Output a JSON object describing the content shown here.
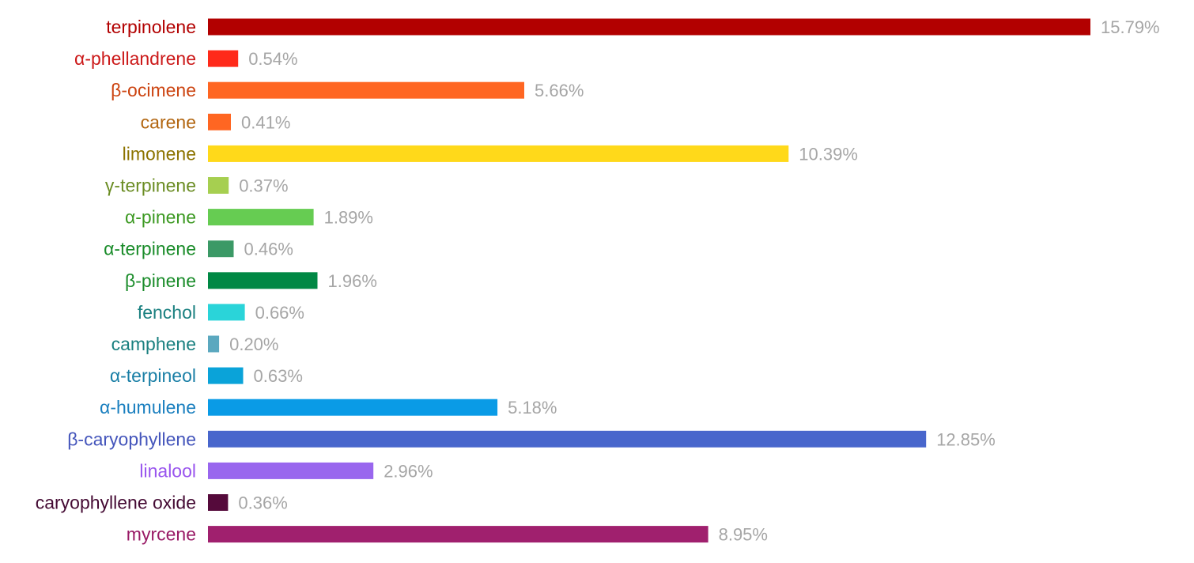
{
  "chart_data": {
    "type": "bar",
    "orientation": "horizontal",
    "categories": [
      "terpinolene",
      "α-phellandrene",
      "β-ocimene",
      "carene",
      "limonene",
      "γ-terpinene",
      "α-pinene",
      "α-terpinene",
      "β-pinene",
      "fenchol",
      "camphene",
      "α-terpineol",
      "α-humulene",
      "β-caryophyllene",
      "linalool",
      "caryophyllene oxide",
      "myrcene"
    ],
    "values": [
      15.79,
      0.54,
      5.66,
      0.41,
      10.39,
      0.37,
      1.89,
      0.46,
      1.96,
      0.66,
      0.2,
      0.63,
      5.18,
      12.85,
      2.96,
      0.36,
      8.95
    ],
    "value_labels": [
      "15.79%",
      "0.54%",
      "5.66%",
      "0.41%",
      "10.39%",
      "0.37%",
      "1.89%",
      "0.46%",
      "1.96%",
      "0.66%",
      "0.20%",
      "0.63%",
      "5.18%",
      "12.85%",
      "2.96%",
      "0.36%",
      "8.95%"
    ],
    "bar_colors": [
      "#b20000",
      "#ff2a1a",
      "#ff6622",
      "#ff6622",
      "#ffd91a",
      "#a6cf50",
      "#66cc52",
      "#3b9966",
      "#008844",
      "#2ad4d9",
      "#5ba8bf",
      "#0aa3d9",
      "#0a9be6",
      "#4866cc",
      "#9966ee",
      "#550a3b",
      "#a0206e"
    ],
    "label_colors": [
      "#b20000",
      "#cc1a1a",
      "#cc4411",
      "#b26611",
      "#8c7300",
      "#6a8c22",
      "#3c9922",
      "#1a8c2a",
      "#1a8c2a",
      "#1a8080",
      "#1a8080",
      "#1a7fa6",
      "#1a7fbf",
      "#4455bb",
      "#9955ee",
      "#440a33",
      "#991a66"
    ],
    "value_label_color": "#a6a6a6",
    "xlim": [
      0,
      15.79
    ],
    "title": "",
    "xlabel": "",
    "ylabel": "",
    "grid": false,
    "legend": false
  }
}
